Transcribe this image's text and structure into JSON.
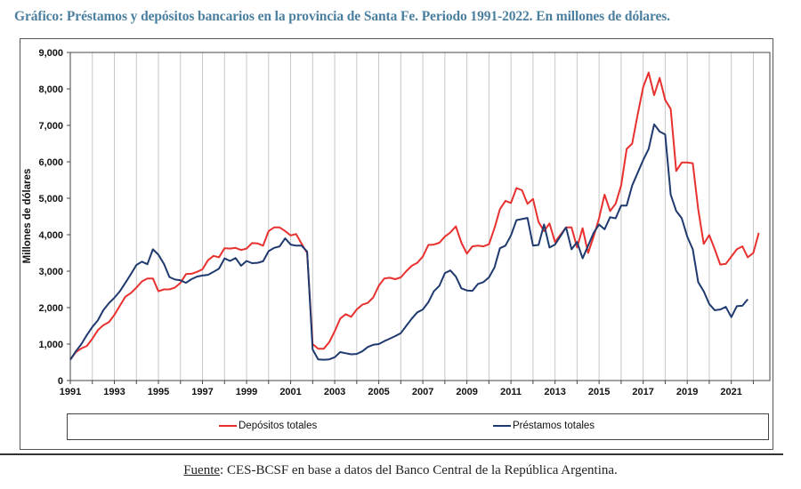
{
  "header": {
    "title": "Gráfico: Préstamos y depósitos bancarios en la provincia de Santa Fe. Periodo 1991-2022. En millones de dólares."
  },
  "footer": {
    "source_label": "Fuente",
    "source_text": ": CES-BCSF en base a datos del Banco Central de la República Argentina."
  },
  "colors": {
    "depositos": "#e8312f",
    "prestamos": "#1f3a6e",
    "grid": "#c8c8c8",
    "title": "#4a7fa0"
  },
  "chart_data": {
    "type": "line",
    "title": "Préstamos y depósitos bancarios en la provincia de Santa Fe. Periodo 1991-2022",
    "xlabel": "",
    "ylabel": "Millones de dólares",
    "ylim": [
      0,
      9000
    ],
    "xlim": [
      1991,
      2022.75
    ],
    "yticks": [
      0,
      1000,
      2000,
      3000,
      4000,
      5000,
      6000,
      7000,
      8000,
      9000
    ],
    "ytick_labels": [
      "0",
      "1,000",
      "2,000",
      "3,000",
      "4,000",
      "5,000",
      "6,000",
      "7,000",
      "8,000",
      "9,000"
    ],
    "xtick_labels": [
      "1991",
      "1993",
      "1995",
      "1997",
      "1999",
      "2001",
      "2003",
      "2005",
      "2007",
      "2009",
      "2011",
      "2013",
      "2015",
      "2017",
      "2019",
      "2021"
    ],
    "grid": "vertical",
    "legend": "bottom",
    "series": [
      {
        "name": "Depósitos totales",
        "color": "#e8312f",
        "points": [
          [
            1991.0,
            570
          ],
          [
            1991.25,
            780
          ],
          [
            1991.5,
            880
          ],
          [
            1991.75,
            950
          ],
          [
            1992.0,
            1150
          ],
          [
            1992.25,
            1380
          ],
          [
            1992.5,
            1520
          ],
          [
            1992.75,
            1600
          ],
          [
            1993.0,
            1800
          ],
          [
            1993.25,
            2050
          ],
          [
            1993.5,
            2300
          ],
          [
            1993.75,
            2400
          ],
          [
            1994.0,
            2550
          ],
          [
            1994.25,
            2720
          ],
          [
            1994.5,
            2800
          ],
          [
            1994.75,
            2800
          ],
          [
            1995.0,
            2450
          ],
          [
            1995.25,
            2500
          ],
          [
            1995.5,
            2500
          ],
          [
            1995.75,
            2550
          ],
          [
            1996.0,
            2680
          ],
          [
            1996.25,
            2920
          ],
          [
            1996.5,
            2930
          ],
          [
            1996.75,
            2980
          ],
          [
            1997.0,
            3050
          ],
          [
            1997.25,
            3300
          ],
          [
            1997.5,
            3420
          ],
          [
            1997.75,
            3380
          ],
          [
            1998.0,
            3630
          ],
          [
            1998.25,
            3620
          ],
          [
            1998.5,
            3640
          ],
          [
            1998.75,
            3580
          ],
          [
            1999.0,
            3620
          ],
          [
            1999.25,
            3770
          ],
          [
            1999.5,
            3760
          ],
          [
            1999.75,
            3700
          ],
          [
            2000.0,
            4100
          ],
          [
            2000.25,
            4200
          ],
          [
            2000.5,
            4200
          ],
          [
            2000.75,
            4100
          ],
          [
            2001.0,
            3980
          ],
          [
            2001.25,
            4020
          ],
          [
            2001.5,
            3750
          ],
          [
            2001.75,
            3500
          ],
          [
            2002.0,
            1000
          ],
          [
            2002.25,
            870
          ],
          [
            2002.5,
            870
          ],
          [
            2002.75,
            1050
          ],
          [
            2003.0,
            1350
          ],
          [
            2003.25,
            1700
          ],
          [
            2003.5,
            1820
          ],
          [
            2003.75,
            1750
          ],
          [
            2004.0,
            1950
          ],
          [
            2004.25,
            2080
          ],
          [
            2004.5,
            2130
          ],
          [
            2004.75,
            2280
          ],
          [
            2005.0,
            2600
          ],
          [
            2005.25,
            2800
          ],
          [
            2005.5,
            2820
          ],
          [
            2005.75,
            2780
          ],
          [
            2006.0,
            2830
          ],
          [
            2006.25,
            3000
          ],
          [
            2006.5,
            3150
          ],
          [
            2006.75,
            3230
          ],
          [
            2007.0,
            3400
          ],
          [
            2007.25,
            3720
          ],
          [
            2007.5,
            3730
          ],
          [
            2007.75,
            3780
          ],
          [
            2008.0,
            3950
          ],
          [
            2008.25,
            4060
          ],
          [
            2008.5,
            4230
          ],
          [
            2008.75,
            3780
          ],
          [
            2009.0,
            3480
          ],
          [
            2009.25,
            3680
          ],
          [
            2009.5,
            3700
          ],
          [
            2009.75,
            3680
          ],
          [
            2010.0,
            3740
          ],
          [
            2010.25,
            4180
          ],
          [
            2010.5,
            4700
          ],
          [
            2010.75,
            4930
          ],
          [
            2011.0,
            4870
          ],
          [
            2011.25,
            5280
          ],
          [
            2011.5,
            5220
          ],
          [
            2011.75,
            4850
          ],
          [
            2012.0,
            4980
          ],
          [
            2012.25,
            4350
          ],
          [
            2012.5,
            4100
          ],
          [
            2012.75,
            4310
          ],
          [
            2013.0,
            3800
          ],
          [
            2013.25,
            4000
          ],
          [
            2013.5,
            4200
          ],
          [
            2013.75,
            4200
          ],
          [
            2014.0,
            3650
          ],
          [
            2014.25,
            4180
          ],
          [
            2014.5,
            3500
          ],
          [
            2014.75,
            3950
          ],
          [
            2015.0,
            4450
          ],
          [
            2015.25,
            5100
          ],
          [
            2015.5,
            4650
          ],
          [
            2015.75,
            4850
          ],
          [
            2016.0,
            5350
          ],
          [
            2016.25,
            6350
          ],
          [
            2016.5,
            6500
          ],
          [
            2016.75,
            7300
          ],
          [
            2017.0,
            8050
          ],
          [
            2017.25,
            8450
          ],
          [
            2017.5,
            7830
          ],
          [
            2017.75,
            8300
          ],
          [
            2018.0,
            7700
          ],
          [
            2018.25,
            7450
          ],
          [
            2018.5,
            5750
          ],
          [
            2018.75,
            5980
          ],
          [
            2019.0,
            5980
          ],
          [
            2019.25,
            5960
          ],
          [
            2019.5,
            4700
          ],
          [
            2019.75,
            3750
          ],
          [
            2020.0,
            3990
          ],
          [
            2020.25,
            3600
          ],
          [
            2020.5,
            3180
          ],
          [
            2020.75,
            3200
          ],
          [
            2021.0,
            3400
          ],
          [
            2021.25,
            3600
          ],
          [
            2021.5,
            3680
          ],
          [
            2021.75,
            3380
          ],
          [
            2022.0,
            3500
          ],
          [
            2022.25,
            4050
          ]
        ]
      },
      {
        "name": "Préstamos totales",
        "color": "#1f3a6e",
        "points": [
          [
            1991.0,
            570
          ],
          [
            1991.25,
            800
          ],
          [
            1991.5,
            1000
          ],
          [
            1991.75,
            1250
          ],
          [
            1992.0,
            1470
          ],
          [
            1992.25,
            1650
          ],
          [
            1992.5,
            1930
          ],
          [
            1992.75,
            2120
          ],
          [
            1993.0,
            2270
          ],
          [
            1993.25,
            2450
          ],
          [
            1993.5,
            2680
          ],
          [
            1993.75,
            2920
          ],
          [
            1994.0,
            3170
          ],
          [
            1994.25,
            3260
          ],
          [
            1994.5,
            3190
          ],
          [
            1994.75,
            3600
          ],
          [
            1995.0,
            3450
          ],
          [
            1995.25,
            3200
          ],
          [
            1995.5,
            2840
          ],
          [
            1995.75,
            2770
          ],
          [
            1996.0,
            2750
          ],
          [
            1996.25,
            2680
          ],
          [
            1996.5,
            2780
          ],
          [
            1996.75,
            2850
          ],
          [
            1997.0,
            2880
          ],
          [
            1997.25,
            2900
          ],
          [
            1997.5,
            2980
          ],
          [
            1997.75,
            3070
          ],
          [
            1998.0,
            3350
          ],
          [
            1998.25,
            3280
          ],
          [
            1998.5,
            3360
          ],
          [
            1998.75,
            3150
          ],
          [
            1999.0,
            3280
          ],
          [
            1999.25,
            3220
          ],
          [
            1999.5,
            3230
          ],
          [
            1999.75,
            3270
          ],
          [
            2000.0,
            3550
          ],
          [
            2000.25,
            3640
          ],
          [
            2000.5,
            3680
          ],
          [
            2000.75,
            3900
          ],
          [
            2001.0,
            3730
          ],
          [
            2001.25,
            3700
          ],
          [
            2001.5,
            3700
          ],
          [
            2001.75,
            3540
          ],
          [
            2002.0,
            850
          ],
          [
            2002.25,
            580
          ],
          [
            2002.5,
            570
          ],
          [
            2002.75,
            580
          ],
          [
            2003.0,
            640
          ],
          [
            2003.25,
            780
          ],
          [
            2003.5,
            750
          ],
          [
            2003.75,
            720
          ],
          [
            2004.0,
            730
          ],
          [
            2004.25,
            800
          ],
          [
            2004.5,
            920
          ],
          [
            2004.75,
            980
          ],
          [
            2005.0,
            1000
          ],
          [
            2005.25,
            1080
          ],
          [
            2005.5,
            1150
          ],
          [
            2005.75,
            1220
          ],
          [
            2006.0,
            1300
          ],
          [
            2006.25,
            1500
          ],
          [
            2006.5,
            1700
          ],
          [
            2006.75,
            1870
          ],
          [
            2007.0,
            1950
          ],
          [
            2007.25,
            2150
          ],
          [
            2007.5,
            2450
          ],
          [
            2007.75,
            2600
          ],
          [
            2008.0,
            2950
          ],
          [
            2008.25,
            3020
          ],
          [
            2008.5,
            2850
          ],
          [
            2008.75,
            2530
          ],
          [
            2009.0,
            2470
          ],
          [
            2009.25,
            2460
          ],
          [
            2009.5,
            2650
          ],
          [
            2009.75,
            2700
          ],
          [
            2010.0,
            2830
          ],
          [
            2010.25,
            3100
          ],
          [
            2010.5,
            3630
          ],
          [
            2010.75,
            3700
          ],
          [
            2011.0,
            3980
          ],
          [
            2011.25,
            4400
          ],
          [
            2011.5,
            4430
          ],
          [
            2011.75,
            4460
          ],
          [
            2012.0,
            3700
          ],
          [
            2012.25,
            3720
          ],
          [
            2012.5,
            4280
          ],
          [
            2012.75,
            3650
          ],
          [
            2013.0,
            3730
          ],
          [
            2013.25,
            3960
          ],
          [
            2013.5,
            4200
          ],
          [
            2013.75,
            3600
          ],
          [
            2014.0,
            3800
          ],
          [
            2014.25,
            3350
          ],
          [
            2014.5,
            3700
          ],
          [
            2014.75,
            4050
          ],
          [
            2015.0,
            4280
          ],
          [
            2015.25,
            4150
          ],
          [
            2015.5,
            4480
          ],
          [
            2015.75,
            4450
          ],
          [
            2016.0,
            4800
          ],
          [
            2016.25,
            4800
          ],
          [
            2016.5,
            5350
          ],
          [
            2016.75,
            5700
          ],
          [
            2017.0,
            6050
          ],
          [
            2017.25,
            6350
          ],
          [
            2017.5,
            7030
          ],
          [
            2017.75,
            6830
          ],
          [
            2018.0,
            6750
          ],
          [
            2018.25,
            5100
          ],
          [
            2018.5,
            4650
          ],
          [
            2018.75,
            4450
          ],
          [
            2019.0,
            3950
          ],
          [
            2019.25,
            3600
          ],
          [
            2019.5,
            2700
          ],
          [
            2019.75,
            2450
          ],
          [
            2020.0,
            2100
          ],
          [
            2020.25,
            1930
          ],
          [
            2020.5,
            1950
          ],
          [
            2020.75,
            2020
          ],
          [
            2021.0,
            1740
          ],
          [
            2021.25,
            2040
          ],
          [
            2021.5,
            2050
          ],
          [
            2021.75,
            2230
          ]
        ]
      }
    ]
  }
}
